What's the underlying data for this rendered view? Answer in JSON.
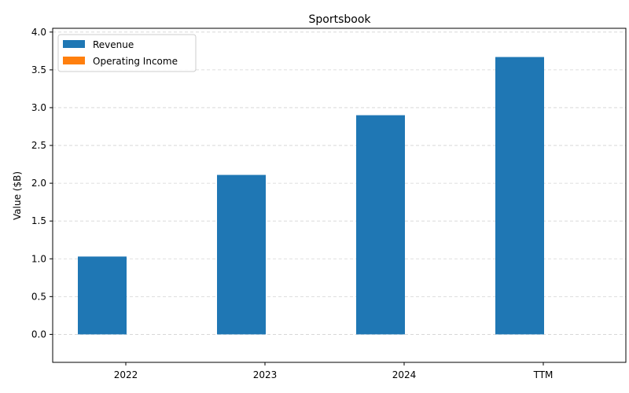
{
  "chart_data": {
    "type": "bar",
    "title": "Sportsbook",
    "xlabel": "",
    "ylabel": "Value ($B)",
    "categories": [
      "2022",
      "2023",
      "2024",
      "TTM"
    ],
    "series": [
      {
        "name": "Revenue",
        "values": [
          1.03,
          2.11,
          2.9,
          3.67
        ],
        "color": "#1f77b4"
      },
      {
        "name": "Operating Income",
        "values": [
          null,
          null,
          null,
          null
        ],
        "color": "#ff7f0e"
      }
    ],
    "ylim": [
      -0.37,
      4.05
    ],
    "yticks": [
      "0.0",
      "0.5",
      "1.0",
      "1.5",
      "2.0",
      "2.5",
      "3.0",
      "3.5",
      "4.0"
    ],
    "grid": true,
    "legend_position": "top-left"
  }
}
